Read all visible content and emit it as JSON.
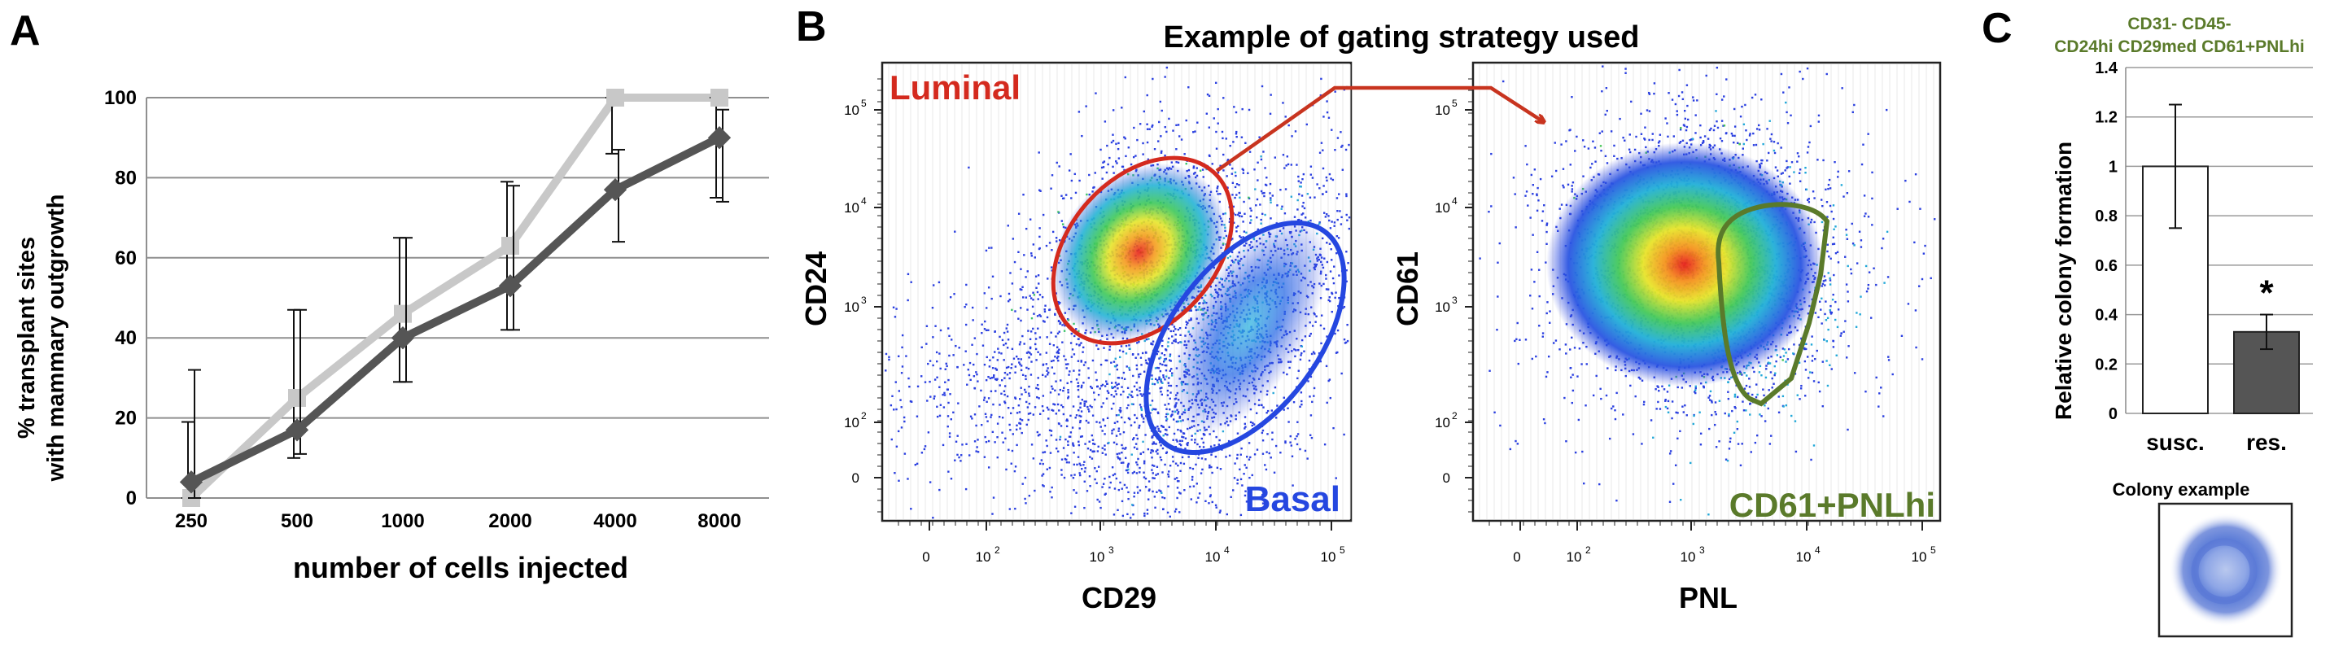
{
  "panels": {
    "A": {
      "letter": "A",
      "ylabel_lines": [
        "% transplant sites",
        "with mammary outgrowth"
      ],
      "xlabel": "number of cells injected",
      "chart_data": {
        "type": "line",
        "categories": [
          "250",
          "500",
          "1000",
          "2000",
          "4000",
          "8000"
        ],
        "ylim": [
          0,
          100
        ],
        "yticks": [
          "0",
          "20",
          "40",
          "60",
          "80",
          "100"
        ],
        "grid": true,
        "series": [
          {
            "values": [
              0,
              25,
              46,
              63,
              100,
              100
            ],
            "err_lo": [
              0,
              15,
              17,
              21,
              14,
              25
            ],
            "err_hi": [
              19,
              22,
              19,
              16,
              0,
              0
            ],
            "color": "#c8c8c8",
            "marker": "square"
          },
          {
            "values": [
              4,
              17,
              40,
              53,
              77,
              90
            ],
            "err_lo": [
              4,
              6,
              11,
              11,
              13,
              16
            ],
            "err_hi": [
              28,
              30,
              25,
              25,
              10,
              7
            ],
            "color": "#555555",
            "marker": "diamond"
          }
        ]
      }
    },
    "B": {
      "letter": "B",
      "title": "Example of gating strategy used",
      "left_plot": {
        "xlabel": "CD29",
        "ylabel": "CD24",
        "gate_luminal": "Luminal",
        "gate_basal": "Basal",
        "yticks": [
          {
            "base": "10",
            "exp": "5"
          },
          {
            "base": "10",
            "exp": "4"
          },
          {
            "base": "10",
            "exp": "3"
          },
          {
            "base": "10",
            "exp": "2"
          },
          {
            "base": "0",
            "exp": ""
          }
        ],
        "xticks": [
          {
            "base": "0",
            "exp": ""
          },
          {
            "base": "10",
            "exp": "2"
          },
          {
            "base": "10",
            "exp": "3"
          },
          {
            "base": "10",
            "exp": "4"
          },
          {
            "base": "10",
            "exp": "5"
          }
        ],
        "colors": {
          "luminal": "#d42a1e",
          "basal": "#2547e0"
        }
      },
      "right_plot": {
        "xlabel": "PNL",
        "ylabel": "CD61",
        "gate_label": "CD61+PNLhi",
        "yticks": [
          {
            "base": "10",
            "exp": "5"
          },
          {
            "base": "10",
            "exp": "4"
          },
          {
            "base": "10",
            "exp": "3"
          },
          {
            "base": "10",
            "exp": "2"
          },
          {
            "base": "0",
            "exp": ""
          }
        ],
        "xticks": [
          {
            "base": "0",
            "exp": ""
          },
          {
            "base": "10",
            "exp": "2"
          },
          {
            "base": "10",
            "exp": "3"
          },
          {
            "base": "10",
            "exp": "4"
          },
          {
            "base": "10",
            "exp": "5"
          }
        ],
        "colors": {
          "gate": "#5a7a2a"
        }
      },
      "arrow_color": "#c8341f"
    },
    "C": {
      "letter": "C",
      "title_lines": [
        "CD31- CD45-",
        "CD24hi CD29med CD61+PNLhi"
      ],
      "title_color": "#5a7a2a",
      "ylabel": "Relative colony formation",
      "significance": "*",
      "chart_data": {
        "type": "bar",
        "categories": [
          "susc.",
          "res."
        ],
        "values": [
          1.0,
          0.33
        ],
        "errors": [
          0.25,
          0.07
        ],
        "colors": [
          "#ffffff",
          "#555555"
        ],
        "ylim": [
          0,
          1.4
        ],
        "yticks": [
          "0",
          "0.2",
          "0.4",
          "0.6",
          "0.8",
          "1",
          "1.2",
          "1.4"
        ],
        "grid": true
      },
      "example_label": "Colony example"
    }
  }
}
